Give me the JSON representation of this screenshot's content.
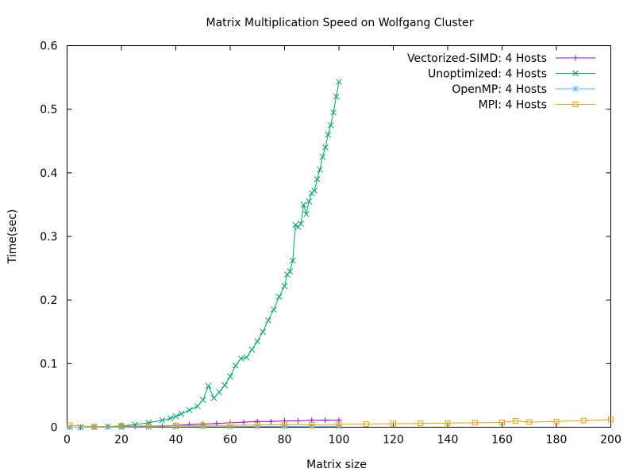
{
  "chart_data": {
    "type": "line",
    "title": "Matrix Multiplication Speed on Wolfgang Cluster",
    "xlabel": "Matrix size",
    "ylabel": "Time(sec)",
    "xlim": [
      0,
      200
    ],
    "ylim": [
      0,
      0.6
    ],
    "xticks": [
      0,
      20,
      40,
      60,
      80,
      100,
      120,
      140,
      160,
      180,
      200
    ],
    "yticks": [
      0,
      0.1,
      0.2,
      0.3,
      0.4,
      0.5,
      0.6
    ],
    "grid": false,
    "legend_position": "top-right",
    "series": [
      {
        "name": "Vectorized-SIMD: 4 Hosts",
        "color": "#9400d3",
        "marker": "plus",
        "x": [
          1,
          5,
          10,
          15,
          20,
          25,
          30,
          35,
          40,
          45,
          50,
          55,
          60,
          65,
          70,
          75,
          80,
          85,
          90,
          95,
          100
        ],
        "y": [
          0.0,
          0.0,
          0.0,
          0.0005,
          0.0008,
          0.001,
          0.0015,
          0.002,
          0.003,
          0.004,
          0.005,
          0.006,
          0.007,
          0.008,
          0.009,
          0.009,
          0.01,
          0.01,
          0.011,
          0.011,
          0.011
        ]
      },
      {
        "name": "Unoptimized: 4 Hosts",
        "color": "#009e73",
        "marker": "cross",
        "x": [
          1,
          5,
          10,
          15,
          20,
          25,
          30,
          35,
          38,
          40,
          42,
          45,
          48,
          50,
          52,
          54,
          56,
          58,
          60,
          62,
          64,
          66,
          68,
          70,
          72,
          74,
          76,
          78,
          80,
          81,
          82,
          83,
          84,
          85,
          86,
          87,
          88,
          89,
          90,
          91,
          92,
          93,
          94,
          95,
          96,
          97,
          98,
          99,
          100
        ],
        "y": [
          0.0,
          0.0,
          0.0005,
          0.001,
          0.002,
          0.004,
          0.007,
          0.011,
          0.014,
          0.017,
          0.021,
          0.027,
          0.033,
          0.043,
          0.065,
          0.046,
          0.055,
          0.066,
          0.08,
          0.097,
          0.108,
          0.11,
          0.122,
          0.135,
          0.15,
          0.168,
          0.185,
          0.205,
          0.222,
          0.24,
          0.245,
          0.262,
          0.318,
          0.315,
          0.32,
          0.35,
          0.335,
          0.355,
          0.368,
          0.372,
          0.39,
          0.405,
          0.425,
          0.44,
          0.46,
          0.475,
          0.495,
          0.52,
          0.543
        ]
      },
      {
        "name": "OpenMP: 4 Hosts",
        "color": "#56b4e9",
        "marker": "star",
        "x": [
          1,
          10,
          20,
          30,
          40,
          50,
          60,
          70,
          80,
          90,
          100
        ],
        "y": [
          0.0,
          0.0,
          0.0,
          0.0005,
          0.0008,
          0.001,
          0.001,
          0.0012,
          0.0014,
          0.0015,
          0.0015
        ]
      },
      {
        "name": "MPI: 4 Hosts",
        "color": "#e69f00",
        "marker": "square",
        "x": [
          1,
          10,
          20,
          30,
          40,
          50,
          60,
          70,
          80,
          90,
          100,
          110,
          120,
          130,
          140,
          150,
          160,
          165,
          170,
          180,
          190,
          200
        ],
        "y": [
          0.003,
          0.001,
          0.0015,
          0.002,
          0.0025,
          0.003,
          0.003,
          0.0035,
          0.004,
          0.004,
          0.0045,
          0.005,
          0.0055,
          0.006,
          0.0065,
          0.007,
          0.0075,
          0.01,
          0.008,
          0.009,
          0.0105,
          0.012
        ]
      }
    ]
  }
}
